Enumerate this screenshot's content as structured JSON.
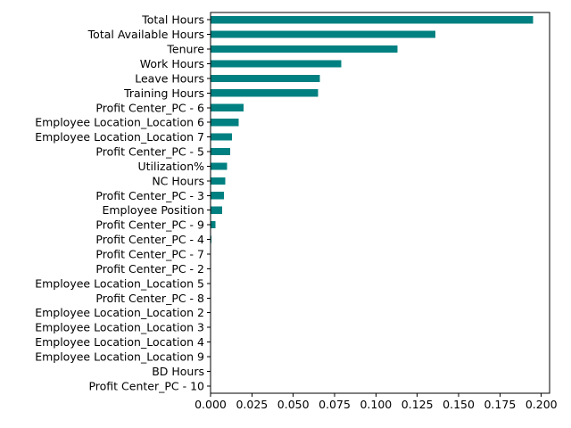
{
  "chart_data": {
    "type": "bar",
    "orientation": "horizontal",
    "bar_color": "#008080",
    "title": "",
    "xlabel": "",
    "ylabel": "",
    "xlim": [
      0,
      0.205
    ],
    "grid": false,
    "legend": "none",
    "categories": [
      "Total Hours",
      "Total Available Hours",
      "Tenure",
      "Work Hours",
      "Leave Hours",
      "Training Hours",
      "Profit Center_PC - 6",
      "Employee Location_Location 6",
      "Employee Location_Location 7",
      "Profit Center_PC - 5",
      "Utilization%",
      "NC Hours",
      "Profit Center_PC - 3",
      "Employee Position",
      "Profit Center_PC - 9",
      "Profit Center_PC - 4",
      "Profit Center_PC - 7",
      "Profit Center_PC - 2",
      "Employee Location_Location 5",
      "Profit Center_PC - 8",
      "Employee Location_Location 2",
      "Employee Location_Location 3",
      "Employee Location_Location 4",
      "Employee Location_Location 9",
      "BD Hours",
      "Profit Center_PC - 10"
    ],
    "values": [
      0.195,
      0.136,
      0.113,
      0.079,
      0.066,
      0.065,
      0.02,
      0.017,
      0.013,
      0.012,
      0.01,
      0.009,
      0.008,
      0.007,
      0.003,
      0.0005,
      0.0004,
      0.0003,
      0.0002,
      0.0002,
      0.0001,
      0.0001,
      0.0001,
      0.0001,
      0.0,
      0.0
    ],
    "xticks": [
      0.0,
      0.025,
      0.05,
      0.075,
      0.1,
      0.125,
      0.15,
      0.175,
      0.2
    ],
    "xtick_labels": [
      "0.000",
      "0.025",
      "0.050",
      "0.075",
      "0.100",
      "0.125",
      "0.150",
      "0.175",
      "0.200"
    ]
  }
}
